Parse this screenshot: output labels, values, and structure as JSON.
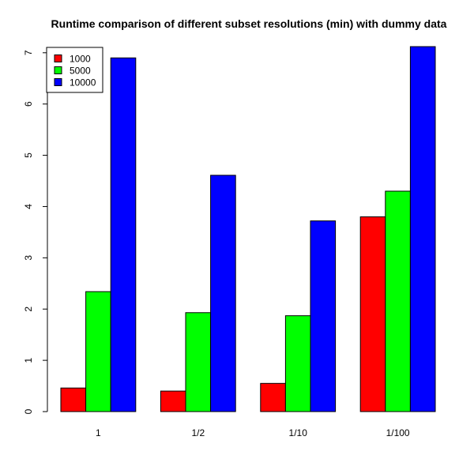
{
  "chart_data": {
    "type": "bar",
    "title": "Runtime comparison of different subset resolutions (min) with dummy data",
    "xlabel": "",
    "ylabel": "",
    "categories": [
      "1",
      "1/2",
      "1/10",
      "1/100"
    ],
    "series": [
      {
        "name": "1000",
        "color": "#ff0000",
        "values": [
          0.46,
          0.4,
          0.55,
          3.8
        ]
      },
      {
        "name": "5000",
        "color": "#00ff00",
        "values": [
          2.34,
          1.93,
          1.87,
          4.3
        ]
      },
      {
        "name": "10000",
        "color": "#0000ff",
        "values": [
          6.9,
          4.61,
          3.72,
          7.12
        ]
      }
    ],
    "ylim": [
      0,
      7.12
    ],
    "yticks": [
      0,
      1,
      2,
      3,
      4,
      5,
      6,
      7
    ],
    "grid": false,
    "legend_position": "top-left"
  }
}
